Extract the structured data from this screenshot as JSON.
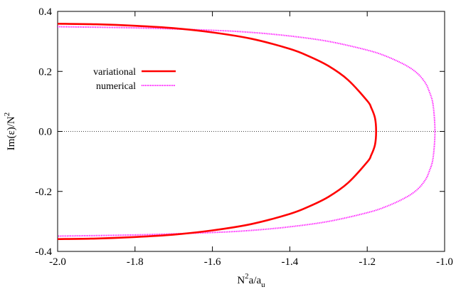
{
  "chart_data": {
    "type": "line",
    "title": "",
    "xlabel": {
      "base": "N",
      "sup": "2",
      "mid": "a/a",
      "sub": "u"
    },
    "ylabel": {
      "base": "Im(ε)/N",
      "sup": "2"
    },
    "xlim": [
      -2.0,
      -1.0
    ],
    "ylim": [
      -0.4,
      0.4
    ],
    "xticks": [
      "-2.0",
      "-1.8",
      "-1.6",
      "-1.4",
      "-1.2",
      "-1.0"
    ],
    "yticks": [
      "-0.4",
      "-0.2",
      "0.0",
      "0.2",
      "0.4"
    ],
    "grid": false,
    "legend_position": "upper-left",
    "zero_line": {
      "y": 0.0,
      "color": "#000000",
      "style": "dotted"
    },
    "series": [
      {
        "name": "variational",
        "color": "#ff0000",
        "style": "solid",
        "x": [
          -2.0,
          -1.9,
          -1.8,
          -1.7,
          -1.6,
          -1.5,
          -1.4,
          -1.35,
          -1.3,
          -1.25,
          -1.2,
          -1.19,
          -1.18,
          -1.177,
          -1.18,
          -1.19,
          -1.2,
          -1.25,
          -1.3,
          -1.35,
          -1.4,
          -1.5,
          -1.6,
          -1.7,
          -1.8,
          -1.9,
          -2.0
        ],
        "y": [
          0.359,
          0.357,
          0.352,
          0.344,
          0.33,
          0.309,
          0.275,
          0.25,
          0.218,
          0.172,
          0.102,
          0.08,
          0.045,
          0.0,
          -0.045,
          -0.08,
          -0.102,
          -0.172,
          -0.218,
          -0.25,
          -0.275,
          -0.309,
          -0.33,
          -0.344,
          -0.352,
          -0.357,
          -0.359
        ]
      },
      {
        "name": "numerical",
        "color": "#ff00ff",
        "style": "dotted",
        "x": [
          -2.0,
          -1.8,
          -1.6,
          -1.5,
          -1.4,
          -1.3,
          -1.2,
          -1.15,
          -1.1,
          -1.07,
          -1.05,
          -1.04,
          -1.03,
          -1.025,
          -1.03,
          -1.04,
          -1.05,
          -1.07,
          -1.1,
          -1.15,
          -1.2,
          -1.3,
          -1.4,
          -1.5,
          -1.6,
          -1.8,
          -2.0
        ],
        "y": [
          0.349,
          0.345,
          0.337,
          0.33,
          0.318,
          0.3,
          0.271,
          0.25,
          0.22,
          0.193,
          0.162,
          0.134,
          0.09,
          0.0,
          -0.09,
          -0.134,
          -0.162,
          -0.193,
          -0.22,
          -0.25,
          -0.271,
          -0.3,
          -0.318,
          -0.33,
          -0.337,
          -0.345,
          -0.349
        ]
      }
    ]
  }
}
